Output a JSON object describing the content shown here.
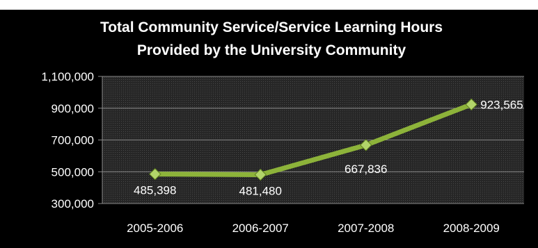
{
  "chart_data": {
    "type": "line",
    "title_lines": [
      "Total Community Service/Service Learning Hours",
      "Provided by the University Community"
    ],
    "categories": [
      "2005-2006",
      "2006-2007",
      "2007-2008",
      "2008-2009"
    ],
    "values": [
      485398,
      481480,
      667836,
      923565
    ],
    "data_labels": [
      "485,398",
      "481,480",
      "667,836",
      "923,565"
    ],
    "y_ticks": [
      300000,
      500000,
      700000,
      900000,
      1100000
    ],
    "y_tick_labels": [
      "300,000",
      "500,000",
      "700,000",
      "900,000",
      "1,100,000"
    ],
    "ylim": [
      300000,
      1100000
    ],
    "xlabel": "",
    "ylabel": "",
    "grid": true,
    "legend": "none",
    "colors": {
      "background": "#000000",
      "plot_area": "#2b2b2b",
      "grid": "#8a8a8a",
      "line": "#8db33a",
      "marker": "#b2d46a",
      "text": "#ffffff"
    }
  }
}
